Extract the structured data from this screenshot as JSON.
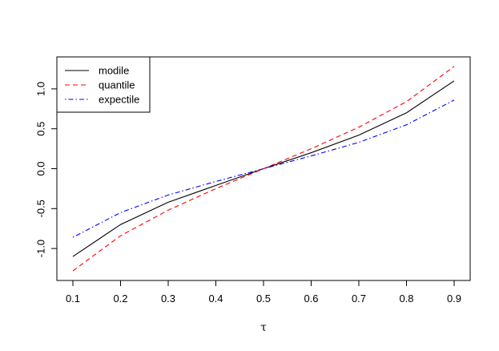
{
  "chart_data": {
    "type": "line",
    "title": "",
    "xlabel": "τ",
    "ylabel": "",
    "x": [
      0.1,
      0.2,
      0.3,
      0.4,
      0.5,
      0.6,
      0.7,
      0.8,
      0.9
    ],
    "xlim": [
      0.1,
      0.9
    ],
    "ylim": [
      -1.28,
      1.28
    ],
    "x_ticks": [
      "0.1",
      "0.2",
      "0.3",
      "0.4",
      "0.5",
      "0.6",
      "0.7",
      "0.8",
      "0.9"
    ],
    "y_ticks": [
      "-1.0",
      "-0.5",
      "0.0",
      "0.5",
      "1.0"
    ],
    "y_tick_values": [
      -1.0,
      -0.5,
      0.0,
      0.5,
      1.0
    ],
    "legend_position": "top-left",
    "grid": false,
    "series": [
      {
        "name": "modile",
        "color": "#000000",
        "dash": "solid",
        "values": [
          -1.1,
          -0.7,
          -0.42,
          -0.21,
          0.0,
          0.2,
          0.42,
          0.7,
          1.1
        ]
      },
      {
        "name": "quantile",
        "color": "#ff0000",
        "dash": "dashed",
        "values": [
          -1.28,
          -0.84,
          -0.52,
          -0.25,
          0.0,
          0.25,
          0.52,
          0.84,
          1.28
        ]
      },
      {
        "name": "expectile",
        "color": "#0000ff",
        "dash": "dotdash",
        "values": [
          -0.86,
          -0.55,
          -0.33,
          -0.16,
          0.0,
          0.16,
          0.33,
          0.55,
          0.86
        ]
      }
    ]
  }
}
